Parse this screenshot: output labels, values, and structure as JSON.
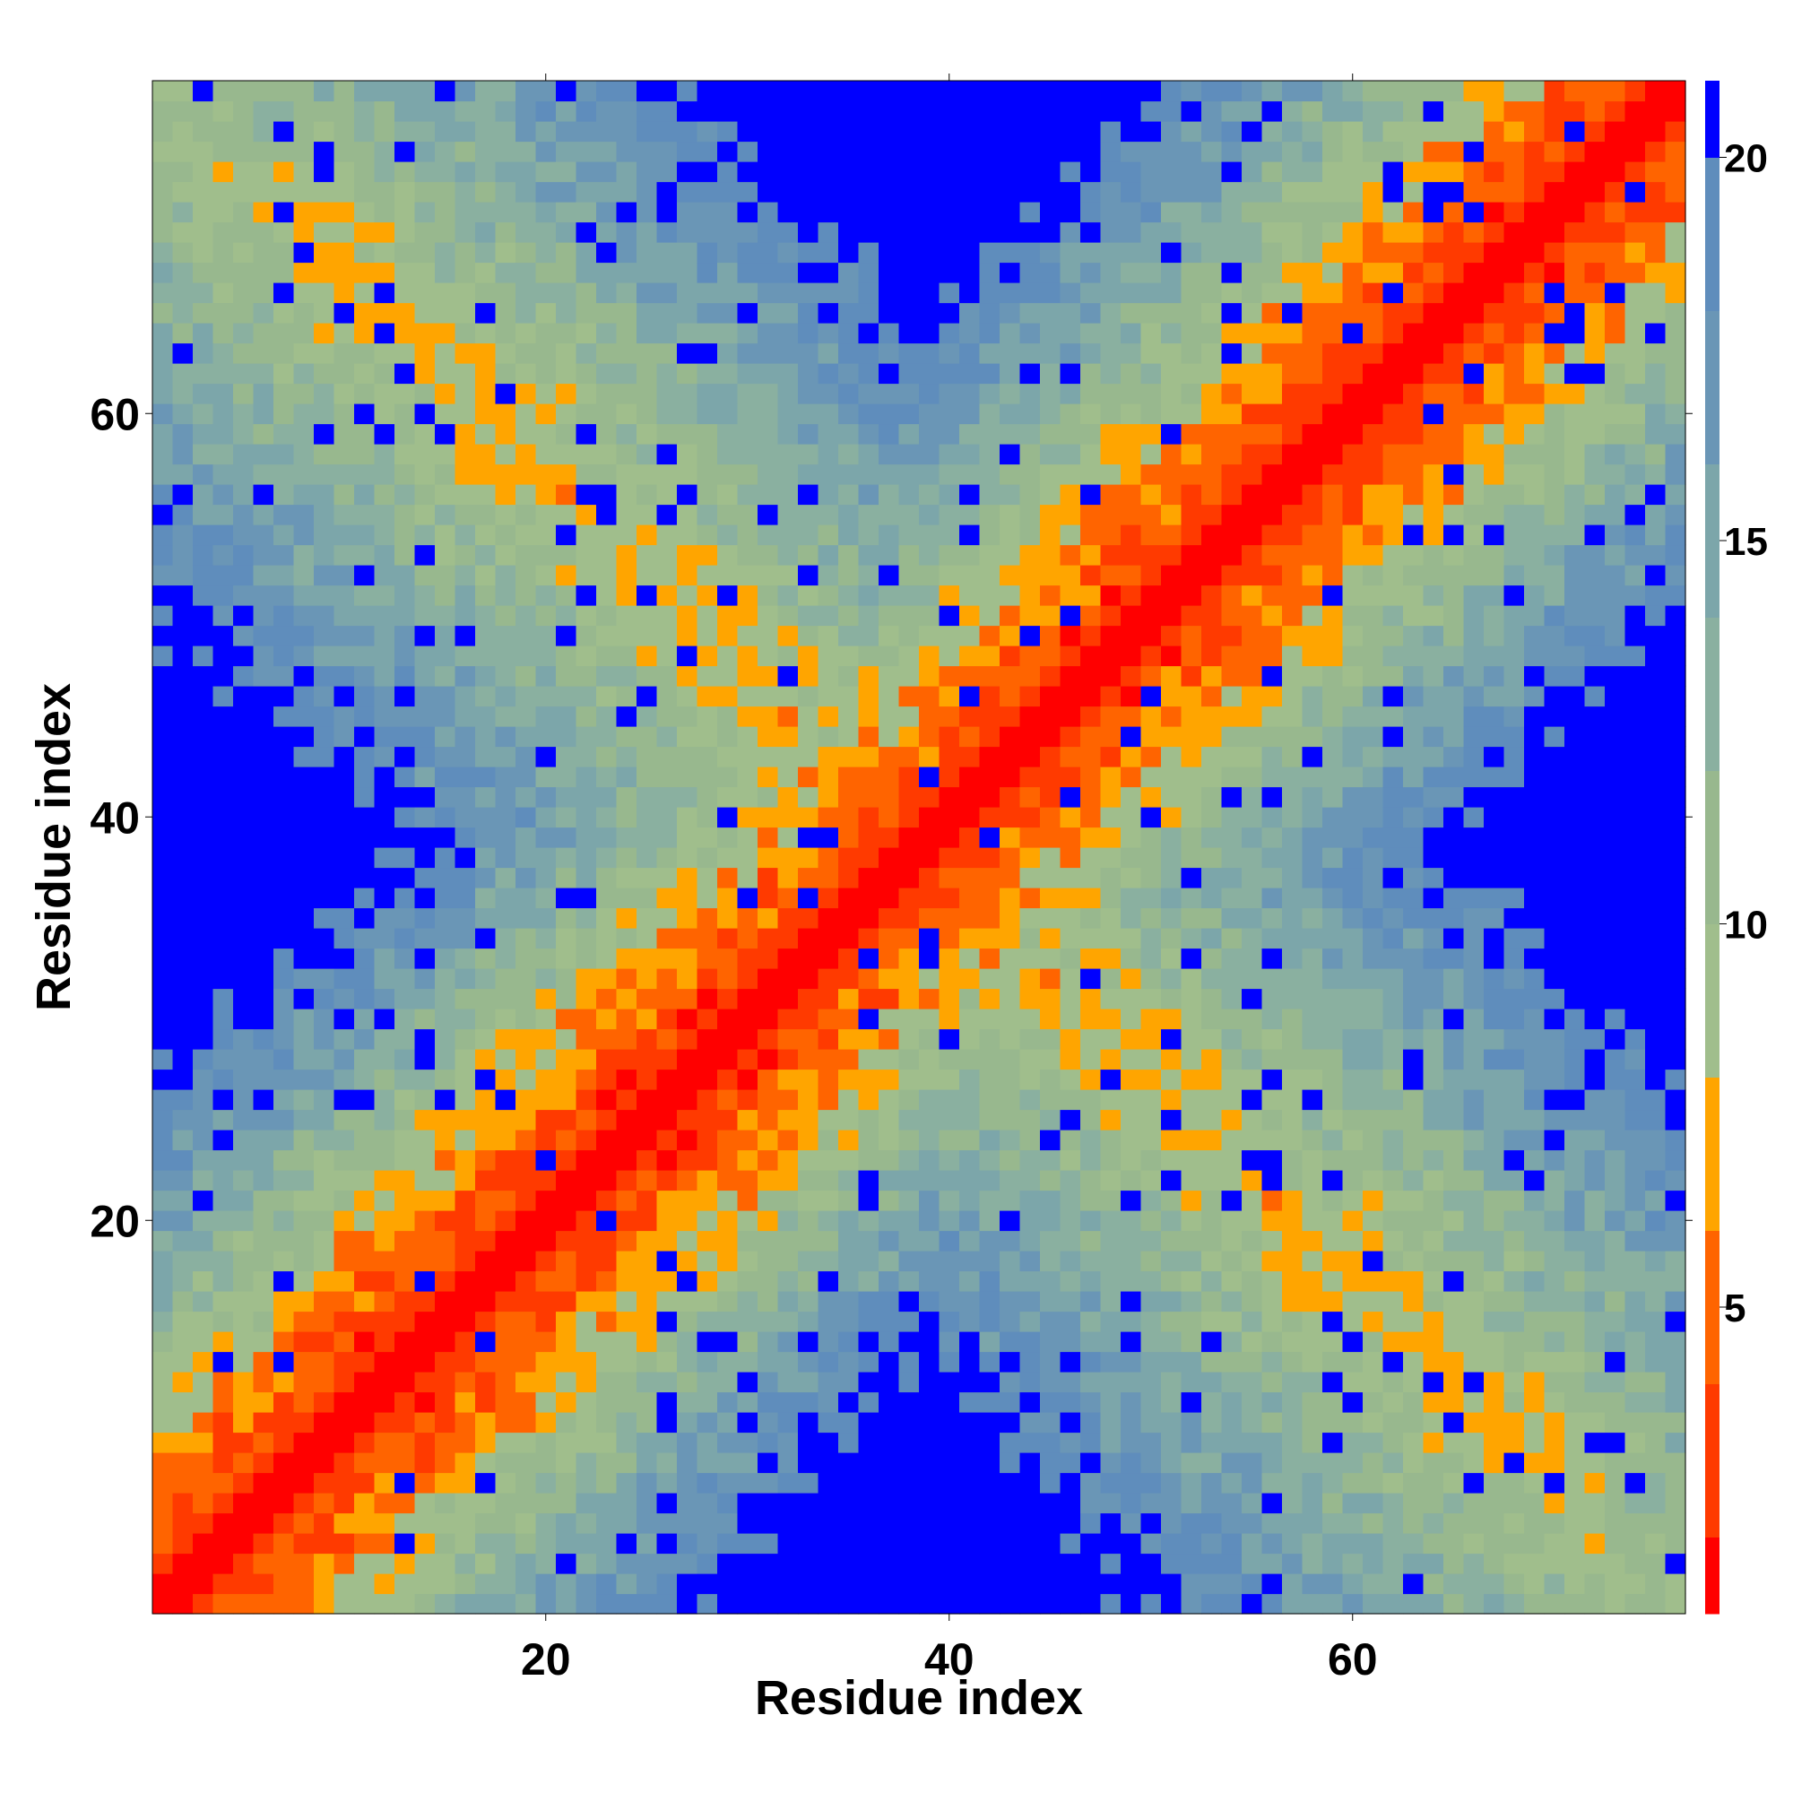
{
  "chart_data": {
    "type": "heatmap",
    "title": "",
    "xlabel": "Residue index",
    "ylabel": "Residue index",
    "n_residues": 76,
    "xlim": [
      1,
      76
    ],
    "ylim": [
      1,
      76
    ],
    "x_ticks": [
      20,
      40,
      60
    ],
    "y_ticks": [
      20,
      40,
      60
    ],
    "x_tick_labels": [
      "20",
      "40",
      "60"
    ],
    "y_tick_labels": [
      "20",
      "40",
      "60"
    ],
    "value_clip": 21,
    "colorbar": {
      "range": [
        1,
        21
      ],
      "ticks": [
        5,
        10,
        15,
        20
      ],
      "tick_labels": [
        "5",
        "10",
        "15",
        "20"
      ],
      "bins": [
        {
          "upper": 2,
          "color": "#ff0000"
        },
        {
          "upper": 4,
          "color": "#ff3a00"
        },
        {
          "upper": 6,
          "color": "#ff6400"
        },
        {
          "upper": 8,
          "color": "#ffa500"
        },
        {
          "upper": 10,
          "color": "#a0be8c"
        },
        {
          "upper": 12,
          "color": "#98b88e"
        },
        {
          "upper": 14,
          "color": "#8ab0a0"
        },
        {
          "upper": 16,
          "color": "#7ca6aa"
        },
        {
          "upper": 18,
          "color": "#6a96b6"
        },
        {
          "upper": 20,
          "color": "#5f8dbc"
        },
        {
          "upper": 21,
          "color": "#0000ff"
        }
      ]
    },
    "model": {
      "description_of_values": "pairwise residue distance matrix (symmetric); values estimated from color bins",
      "diagonal_rate": 0.75,
      "anti_diagonal_center": 77,
      "anti_diagonal_base": 7.5,
      "anti_diagonal_rate": 0.5,
      "anti_diagonal_span_halfwidth": 40
    },
    "grid": false,
    "legend": "colorbar-right"
  }
}
